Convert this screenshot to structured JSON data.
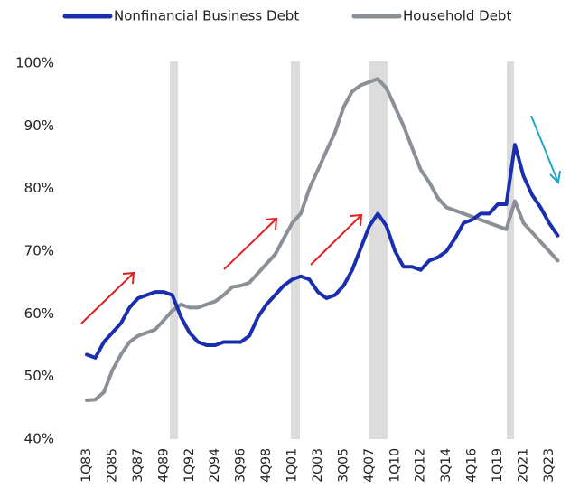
{
  "chart_data": {
    "type": "line",
    "categories": [
      "1Q83",
      null,
      null,
      "2Q85",
      null,
      null,
      "3Q87",
      null,
      null,
      "4Q89",
      null,
      null,
      "1Q92",
      null,
      null,
      "2Q94",
      null,
      null,
      "3Q96",
      null,
      null,
      "4Q98",
      null,
      null,
      "1Q01",
      null,
      null,
      "2Q03",
      null,
      null,
      "3Q05",
      null,
      null,
      "4Q07",
      null,
      null,
      "1Q10",
      null,
      null,
      "2Q12",
      null,
      null,
      "3Q14",
      null,
      null,
      "4Q16",
      null,
      null,
      "1Q19",
      null,
      null,
      "2Q21",
      null,
      null,
      "3Q23",
      null
    ],
    "series": [
      {
        "name": "Nonfinancial Business Debt",
        "color": "#1a2fb0",
        "values": [
          53.5,
          53,
          55.5,
          57,
          58.5,
          61,
          62.5,
          63,
          63.5,
          63.5,
          63,
          59.5,
          57,
          55.5,
          55,
          55,
          55.5,
          55.5,
          55.5,
          56.5,
          59.5,
          61.5,
          63,
          64.5,
          65.5,
          66,
          65.5,
          63.5,
          62.5,
          63,
          64.5,
          67,
          70.5,
          74,
          76,
          74,
          70,
          67.5,
          67.5,
          67,
          68.5,
          69,
          70,
          72,
          74.5,
          75,
          76,
          76,
          77.5,
          77.5,
          87,
          82,
          79,
          77,
          74.5,
          72.5
        ]
      },
      {
        "name": "Household Debt",
        "color": "#8a9096",
        "values": [
          46.2,
          46.3,
          47.5,
          51,
          53.5,
          55.5,
          56.5,
          57,
          57.5,
          59,
          60.5,
          61.5,
          61,
          61,
          61.5,
          62,
          63,
          64.3,
          64.5,
          65,
          66.5,
          68,
          69.5,
          72,
          74.5,
          76,
          80,
          83,
          86,
          89,
          93,
          95.5,
          96.5,
          97,
          97.5,
          96,
          93,
          90,
          86.5,
          83,
          81,
          78.5,
          77,
          76.5,
          76,
          75.5,
          75,
          74.5,
          74,
          73.5,
          78,
          74.5,
          73,
          71.5,
          70,
          68.5
        ]
      }
    ],
    "ylim": [
      40,
      100
    ],
    "yticks": [
      {
        "value": 40,
        "label": "40%"
      },
      {
        "value": 50,
        "label": "50%"
      },
      {
        "value": 60,
        "label": "60%"
      },
      {
        "value": 70,
        "label": "70%"
      },
      {
        "value": 80,
        "label": "80%"
      },
      {
        "value": 90,
        "label": "90%"
      },
      {
        "value": 100,
        "label": "100%"
      }
    ]
  }
}
